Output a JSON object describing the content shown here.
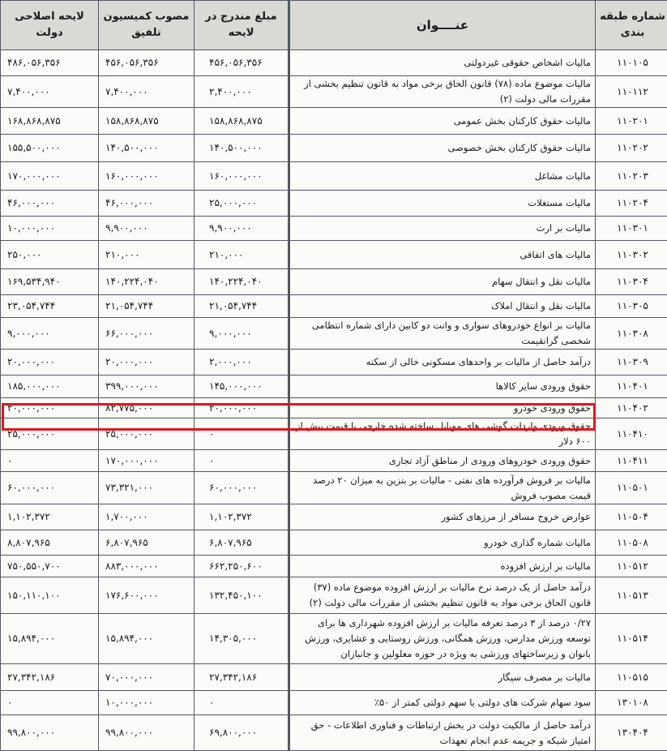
{
  "headers": {
    "code": "شماره طبقه بندی",
    "title": "عنــــوان",
    "bill": "مبلغ مندرج در لایحه",
    "commission": "مصوب کمیسیون تلفیق",
    "revised": "لایحه اصلاحی دولت"
  },
  "highlight_color": "#e8131c",
  "rows": [
    {
      "code": "۱۱۰۱۰۵",
      "title": "مالیات اشخاص حقوقی غیردولتی",
      "bill": "۴۵۶,۰۵۶,۳۵۶",
      "commission": "۴۵۶,۰۵۶,۳۵۶",
      "revised": "۴۸۶,۰۵۶,۳۵۶"
    },
    {
      "code": "۱۱۰۱۱۲",
      "title": "مالیات موضوع ماده (۷۸) قانون الحاق برخی مواد به قانون تنظیم بخشی از مقررات مالی دولت (۲)",
      "bill": "۲,۴۰۰,۰۰۰",
      "commission": "۷,۴۰۰,۰۰۰",
      "revised": "۷,۴۰۰,۰۰۰"
    },
    {
      "code": "۱۱۰۲۰۱",
      "title": "مالیات حقوق کارکنان بخش عمومی",
      "bill": "۱۵۸,۸۶۸,۸۷۵",
      "commission": "۱۵۸,۸۶۸,۸۷۵",
      "revised": "۱۶۸,۸۶۸,۸۷۵"
    },
    {
      "code": "۱۱۰۲۰۲",
      "title": "مالیات حقوق کارکنان بخش خصوصی",
      "bill": "۱۴۰,۵۰۰,۰۰۰",
      "commission": "۱۴۰,۵۰۰,۰۰۰",
      "revised": "۱۵۵,۵۰۰,۰۰۰"
    },
    {
      "code": "۱۱۰۲۰۳",
      "title": "مالیات مشاغل",
      "bill": "۱۶۰,۰۰۰,۰۰۰",
      "commission": "۱۶۰,۰۰۰,۰۰۰",
      "revised": "۱۷۰,۰۰۰,۰۰۰"
    },
    {
      "code": "۱۱۰۲۰۴",
      "title": "مالیات مستغلات",
      "bill": "۲۵,۰۰۰,۰۰۰",
      "commission": "۴۶,۰۰۰,۰۰۰",
      "revised": "۴۶,۰۰۰,۰۰۰"
    },
    {
      "code": "۱۱۰۳۰۱",
      "title": "مالیات بر ارث",
      "bill": "۹,۹۰۰,۰۰۰",
      "commission": "۹,۹۰۰,۰۰۰",
      "revised": "۱۰,۰۰۰,۰۰۰"
    },
    {
      "code": "۱۱۰۳۰۲",
      "title": "مالیات های اتفاقی",
      "bill": "۲۱۰,۰۰۰",
      "commission": "۲۱۰,۰۰۰",
      "revised": "۲۵۰,۰۰۰"
    },
    {
      "code": "۱۱۰۳۰۴",
      "title": "مالیات نقل و انتقال سهام",
      "bill": "۱۴۰,۲۲۴,۰۴۰",
      "commission": "۱۴۰,۲۲۴,۰۴۰",
      "revised": "۱۶۹,۵۳۴,۹۴۰"
    },
    {
      "code": "۱۱۰۳۰۵",
      "title": "مالیات نقل و انتقال املاک",
      "bill": "۲۱,۰۵۴,۷۴۴",
      "commission": "۲۱,۰۵۴,۷۴۴",
      "revised": "۲۳,۰۵۴,۷۴۴"
    },
    {
      "code": "۱۱۰۳۰۸",
      "title": "مالیات بر انواع خودروهای سواری و وانت دو کابین دارای شماره انتظامی شخصی گرانقیمت",
      "bill": "۹,۰۰۰,۰۰۰",
      "commission": "۶۶,۰۰۰,۰۰۰",
      "revised": "۹,۰۰۰,۰۰۰"
    },
    {
      "code": "۱۱۰۳۰۹",
      "title": "درآمد حاصل از مالیات بر واحدهای مسکونی خالی از سکنه",
      "bill": "۲,۰۰۰,۰۰۰",
      "commission": "۲۰,۰۰۰,۰۰۰",
      "revised": "۲۰,۰۰۰,۰۰۰"
    },
    {
      "code": "۱۱۰۴۰۱",
      "title": "حقوق ورودی سایر کالاها",
      "bill": "۱۴۵,۰۰۰,۰۰۰",
      "commission": "۳۹۹,۰۰۰,۰۰۰",
      "revised": "۱۸۵,۰۰۰,۰۰۰"
    },
    {
      "code": "۱۱۰۴۰۲",
      "title": "حقوق ورودی خودرو",
      "bill": "۲۰,۰۰۰,۰۰۰",
      "commission": "۸۲,۷۷۵,۰۰۰",
      "revised": "۲۰,۰۰۰,۰۰۰"
    },
    {
      "code": "۱۱۰۴۱۰",
      "title": "حقوق ورودی واردات گوشی های موبایل ساخته شده خارجی با قیمت بیش از ۶۰۰ دلار",
      "bill": "۰",
      "commission": "۲۵,۰۰۰,۰۰۰",
      "revised": "۲۵,۰۰۰,۰۰۰",
      "highlighted": true
    },
    {
      "code": "۱۱۰۴۱۱",
      "title": "حقوق ورودی خودروهای ورودی از مناطق آزاد تجاری",
      "bill": "۰",
      "commission": "۱۷۰,۰۰۰,۰۰۰",
      "revised": "۰"
    },
    {
      "code": "۱۱۰۵۰۱",
      "title": "مالیات بر فروش فرآورده های نفتی - مالیات بر بنزین به میزان ۲۰ درصد قیمت مصوب فروش",
      "bill": "۶۰,۰۰۰,۰۰۰",
      "commission": "۷۳,۳۲۱,۰۰۰",
      "revised": "۶۰,۰۰۰,۰۰۰"
    },
    {
      "code": "۱۱۰۵۰۴",
      "title": "عوارض خروج مسافر از مرزهای کشور",
      "bill": "۱,۱۰۲,۳۷۲",
      "commission": "۱,۷۰۰,۰۰۰",
      "revised": "۱,۱۰۲,۳۷۲"
    },
    {
      "code": "۱۱۰۵۰۸",
      "title": "مالیات شماره گذاری خودرو",
      "bill": "۶,۸۰۷,۹۶۵",
      "commission": "۶,۸۰۷,۹۶۵",
      "revised": "۸,۸۰۷,۹۶۵"
    },
    {
      "code": "۱۱۰۵۱۲",
      "title": "مالیات بر ارزش افزوده",
      "bill": "۶۶۲,۲۵۰,۶۰۰",
      "commission": "۸۸۳,۰۰۰,۰۰۰",
      "revised": "۷۵۰,۵۵۰,۷۰۰"
    },
    {
      "code": "۱۱۰۵۱۳",
      "title": "درآمد حاصل از یک درصد نرخ مالیات بر ارزش افزوده موضوع ماده (۳۷) قانون الحاق برخی مواد به قانون تنظیم بخشی از مقررات مالی دولت (۲)",
      "bill": "۱۳۲,۴۵۰,۱۰۰",
      "commission": "۱۷۶,۶۰۰,۰۰۰",
      "revised": "۱۵۰,۱۱۰,۱۰۰"
    },
    {
      "code": "۱۱۰۵۱۴",
      "title": "۰/۲۷ درصد از ۳ درصد تعرفه مالیات بر ارزش افزوده شهرداری ها برای توسعه ورزش مدارس، ورزش همگانی، ورزش روستایی و عشایری، ورزش بانوان و زیرساختهای ورزشی به ویژه در حوزه معلولین و جانبازان",
      "bill": "۱۴,۳۰۵,۰۰۰",
      "commission": "۱۵,۸۹۴,۰۰۰",
      "revised": "۱۵,۸۹۴,۰۰۰"
    },
    {
      "code": "۱۱۰۵۱۵",
      "title": "مالیات بر مصرف سیگار",
      "bill": "۲۷,۳۴۲,۱۸۶",
      "commission": "۷۰,۰۰۰,۰۰۰",
      "revised": "۲۷,۳۴۲,۱۸۶"
    },
    {
      "code": "۱۳۰۱۰۸",
      "title": "سود سهام شرکت های دولتی با سهم دولتی کمتر از ۵۰٪",
      "bill": "۰",
      "commission": "۱۰,۰۰۰,۰۰۰",
      "revised": "۰"
    },
    {
      "code": "۱۳۰۴۰۴",
      "title": "درآمد حاصل از مالکیت دولت در بخش ارتباطات و فناوری اطلاعات - حق امتیاز شبکه و جریمه عدم انجام تعهدات",
      "bill": "۶۹,۸۰۰,۰۰۰",
      "commission": "۹۹,۸۰۰,۰۰۰",
      "revised": "۹۹,۸۰۰,۰۰۰"
    }
  ]
}
